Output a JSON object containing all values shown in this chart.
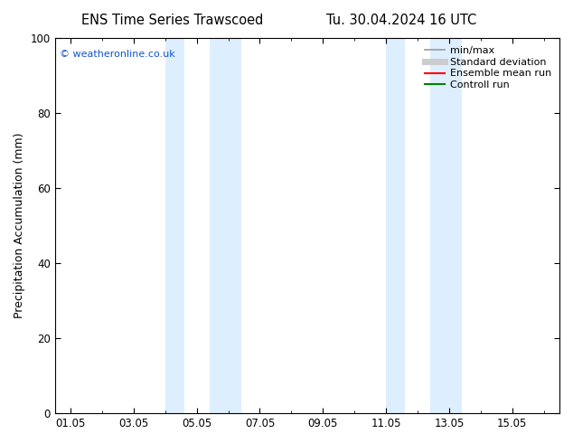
{
  "title_left": "ENS Time Series Trawscoed",
  "title_right": "Tu. 30.04.2024 16 UTC",
  "ylabel": "Precipitation Accumulation (mm)",
  "ylim": [
    0,
    100
  ],
  "yticks": [
    0,
    20,
    40,
    60,
    80,
    100
  ],
  "xtick_labels": [
    "01.05",
    "03.05",
    "05.05",
    "07.05",
    "09.05",
    "11.05",
    "13.05",
    "15.05"
  ],
  "xtick_positions": [
    0,
    2,
    4,
    6,
    8,
    10,
    12,
    14
  ],
  "xlim": [
    -0.5,
    15.5
  ],
  "shaded_bands": [
    {
      "x_start": 3.0,
      "x_end": 3.6
    },
    {
      "x_start": 4.4,
      "x_end": 5.4
    },
    {
      "x_start": 10.0,
      "x_end": 10.6
    },
    {
      "x_start": 11.4,
      "x_end": 12.4
    }
  ],
  "shade_color": "#ddeeff",
  "watermark_text": "© weatheronline.co.uk",
  "watermark_color": "#1155cc",
  "legend_entries": [
    {
      "label": "min/max",
      "color": "#999999",
      "lw": 1.2
    },
    {
      "label": "Standard deviation",
      "color": "#cccccc",
      "lw": 5
    },
    {
      "label": "Ensemble mean run",
      "color": "#ff0000",
      "lw": 1.5
    },
    {
      "label": "Controll run",
      "color": "#008000",
      "lw": 1.5
    }
  ],
  "bg_color": "#ffffff",
  "axes_bg_color": "#ffffff",
  "title_fontsize": 10.5,
  "tick_fontsize": 8.5,
  "ylabel_fontsize": 9,
  "legend_fontsize": 8
}
